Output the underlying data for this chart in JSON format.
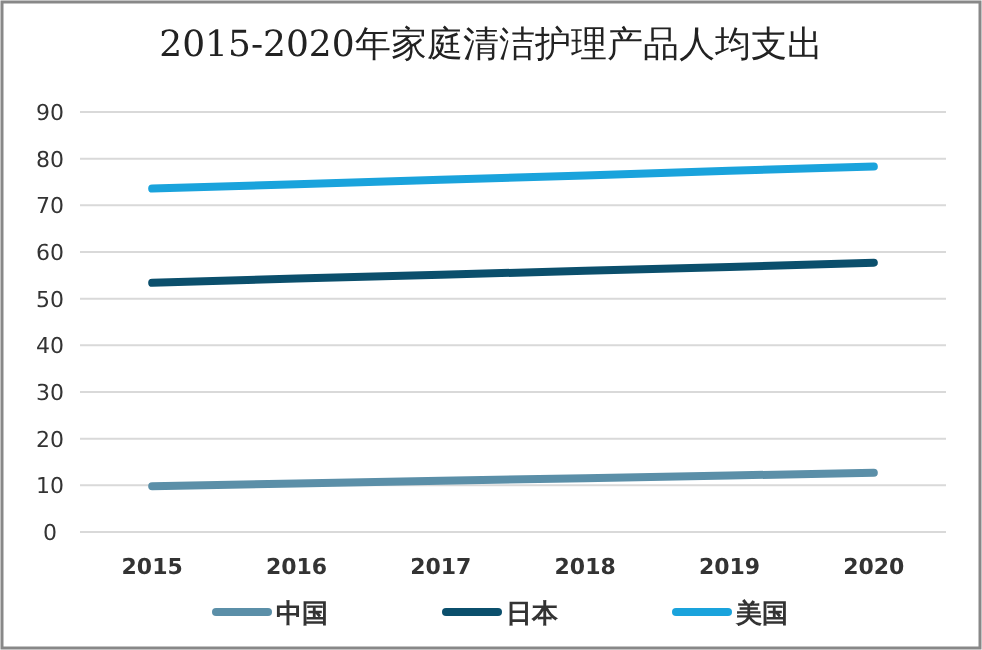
{
  "chart_data": {
    "type": "line",
    "title": "2015-2020年家庭清洁护理产品人均支出",
    "categories": [
      "2015",
      "2016",
      "2017",
      "2018",
      "2019",
      "2020"
    ],
    "series": [
      {
        "name": "中国",
        "color": "#5b8fa8",
        "values": [
          9.8,
          10.4,
          11.0,
          11.5,
          12.1,
          12.7
        ]
      },
      {
        "name": "日本",
        "color": "#0b4f6c",
        "values": [
          53.4,
          54.3,
          55.1,
          56.0,
          56.8,
          57.7
        ]
      },
      {
        "name": "美国",
        "color": "#1aa3dc",
        "values": [
          73.6,
          74.5,
          75.5,
          76.4,
          77.4,
          78.3
        ]
      }
    ],
    "ylim": [
      0,
      90
    ],
    "yticks": [
      0,
      10,
      20,
      30,
      40,
      50,
      60,
      70,
      80,
      90
    ],
    "grid": "y",
    "legend": "bottom",
    "marker": "none",
    "line_style": "solid"
  }
}
